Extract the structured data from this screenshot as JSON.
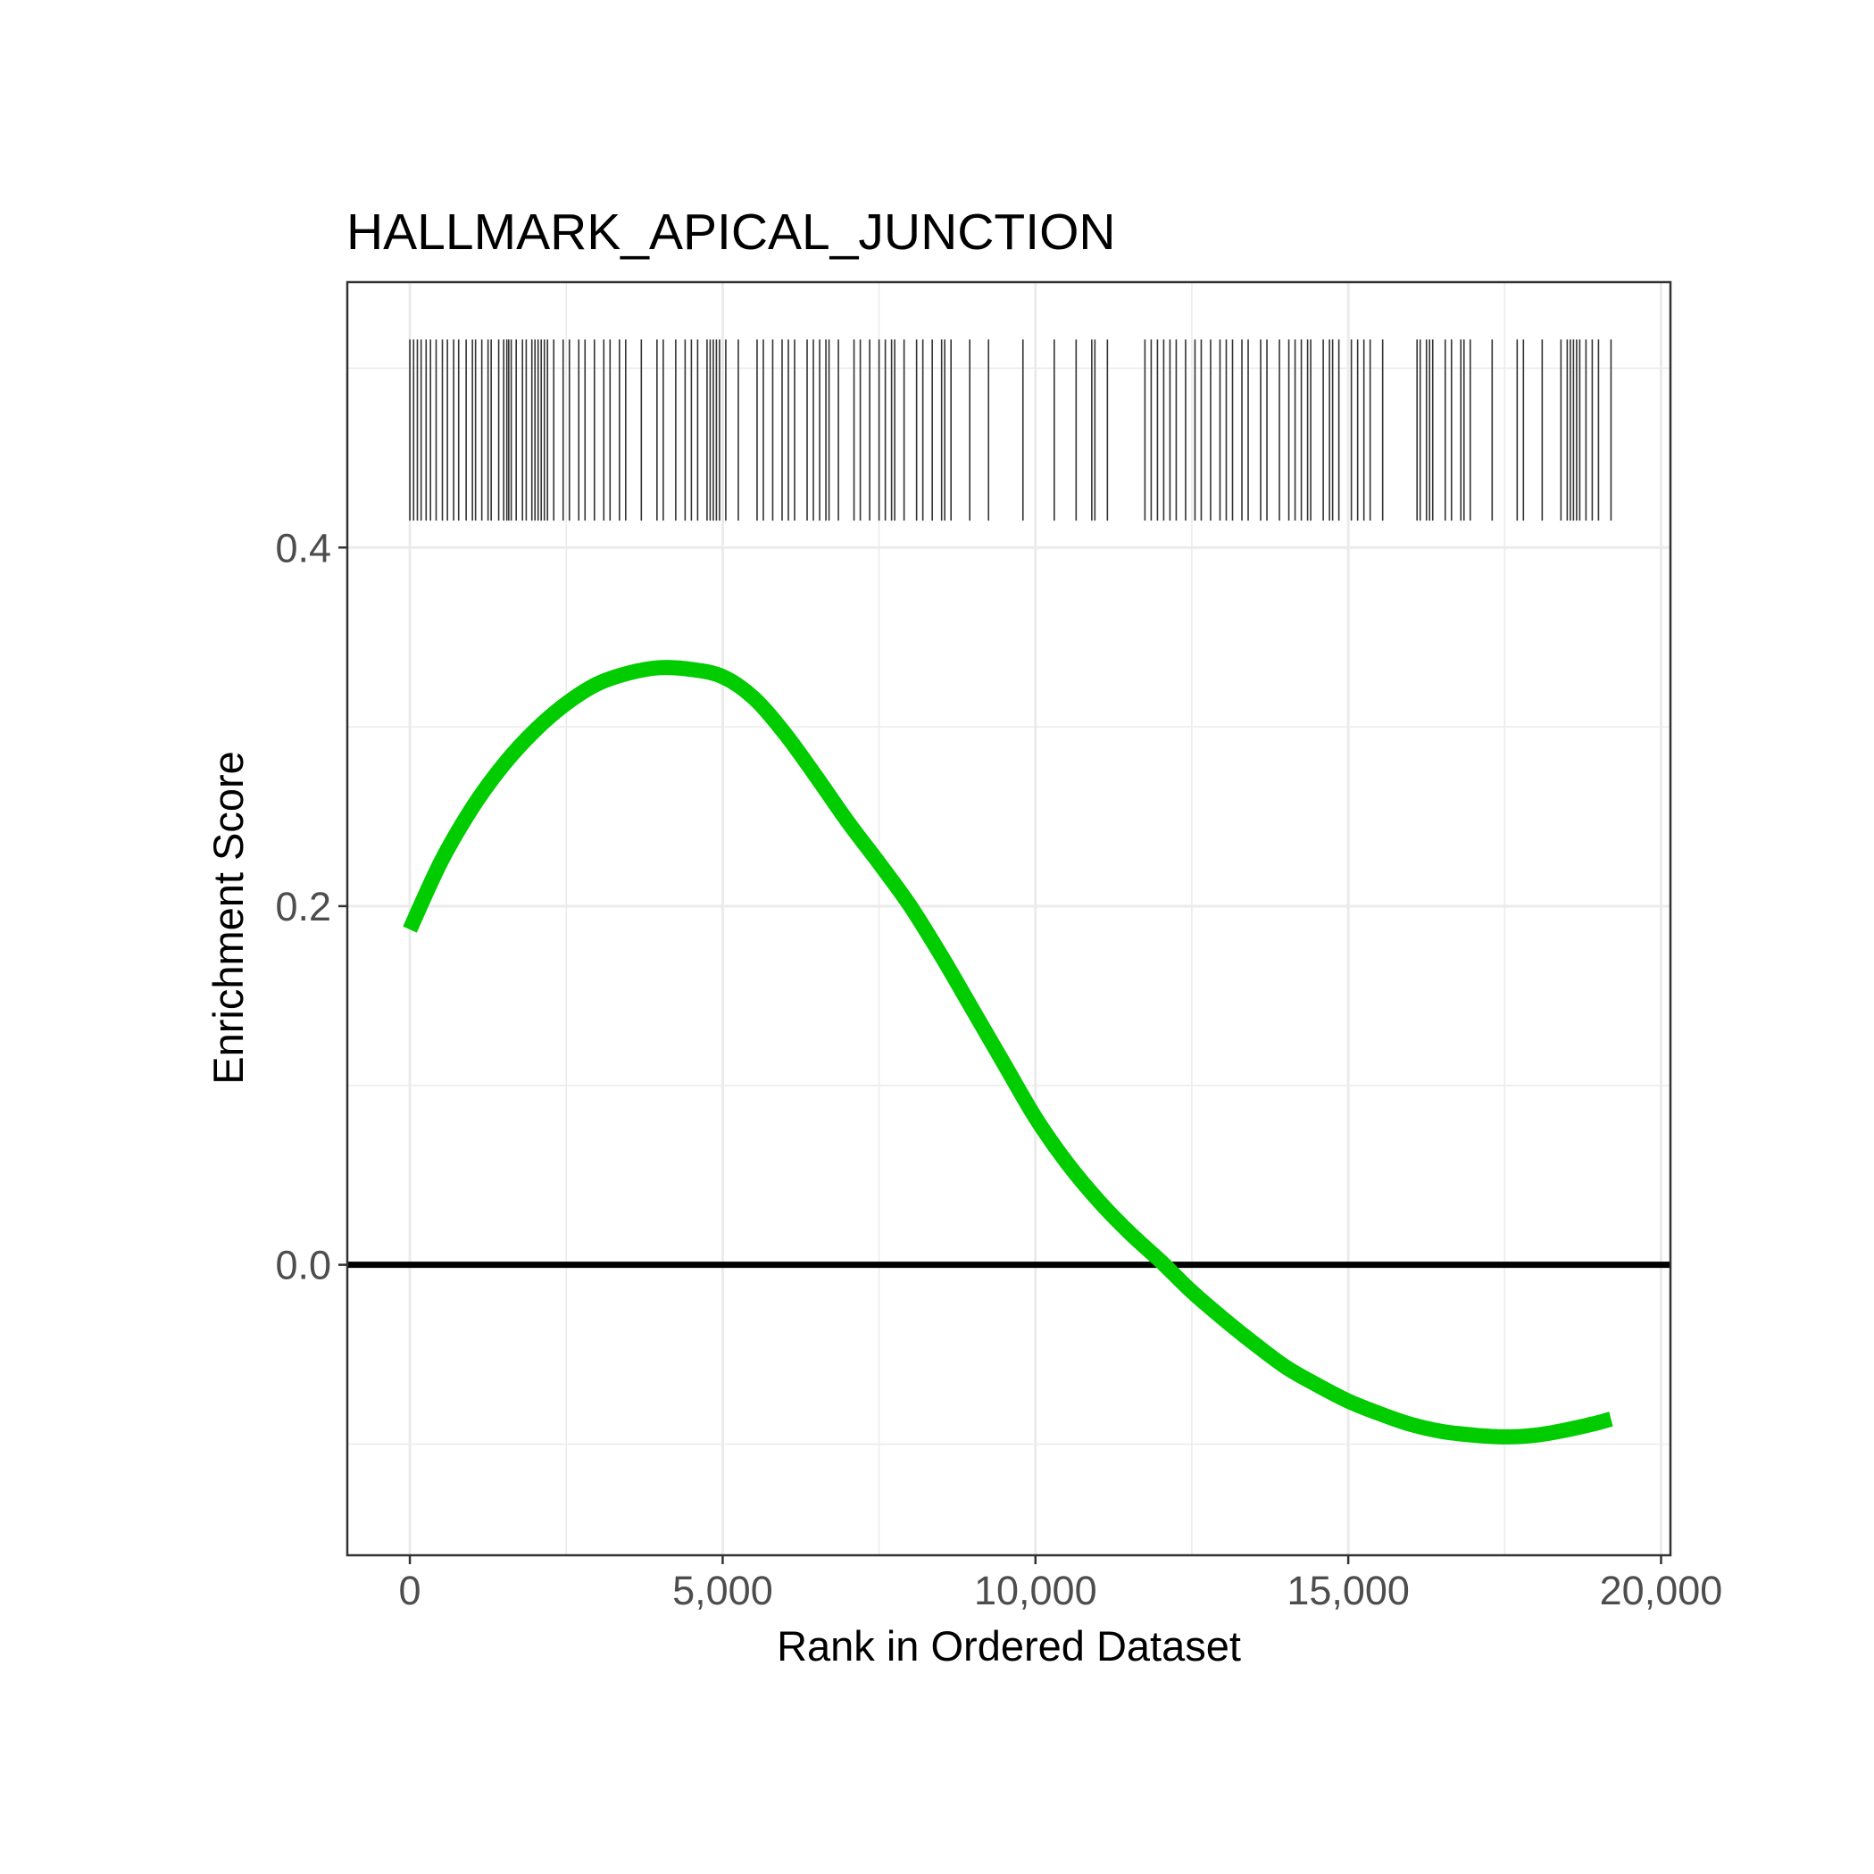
{
  "chart_data": {
    "type": "line",
    "title": "HALLMARK_APICAL_JUNCTION",
    "xlabel": "Rank in Ordered Dataset",
    "ylabel": "Enrichment Score",
    "xlim": [
      -1000,
      20150
    ],
    "ylim": [
      -0.162,
      0.548
    ],
    "x_ticks": [
      {
        "value": 0,
        "label": "0"
      },
      {
        "value": 5000,
        "label": "5,000"
      },
      {
        "value": 10000,
        "label": "10,000"
      },
      {
        "value": 15000,
        "label": "15,000"
      },
      {
        "value": 20000,
        "label": "20,000"
      }
    ],
    "x_minor": [
      2500,
      7500,
      12500,
      17500
    ],
    "y_ticks": [
      {
        "value": 0.0,
        "label": "0.0"
      },
      {
        "value": 0.2,
        "label": "0.2"
      },
      {
        "value": 0.4,
        "label": "0.4"
      }
    ],
    "y_minor": [
      -0.1,
      0.1,
      0.3,
      0.5
    ],
    "grid": true,
    "baseline": 0,
    "line_color": "#00cc00",
    "series": [
      {
        "x": [
          0,
          500,
          1000,
          1500,
          2000,
          2500,
          3000,
          3500,
          4000,
          4500,
          5000,
          5500,
          6000,
          6500,
          7000,
          7500,
          8000,
          8500,
          9000,
          9500,
          10000,
          10500,
          11000,
          11500,
          12000,
          12500,
          13000,
          13500,
          14000,
          14500,
          15000,
          15500,
          16000,
          16500,
          17000,
          17500,
          18000,
          18500,
          19000,
          19200
        ],
        "y": [
          0.187,
          0.225,
          0.255,
          0.279,
          0.298,
          0.313,
          0.324,
          0.33,
          0.333,
          0.332,
          0.328,
          0.316,
          0.296,
          0.272,
          0.247,
          0.224,
          0.2,
          0.172,
          0.142,
          0.112,
          0.082,
          0.057,
          0.036,
          0.018,
          0.002,
          -0.015,
          -0.03,
          -0.044,
          -0.057,
          -0.067,
          -0.076,
          -0.083,
          -0.089,
          -0.093,
          -0.095,
          -0.096,
          -0.095,
          -0.092,
          -0.088,
          -0.086
        ]
      }
    ],
    "hit_ranks": [
      0,
      60,
      120,
      180,
      260,
      330,
      420,
      520,
      600,
      700,
      780,
      900,
      1000,
      1050,
      1150,
      1250,
      1300,
      1420,
      1500,
      1550,
      1580,
      1620,
      1700,
      1800,
      1860,
      1950,
      2000,
      2050,
      2100,
      2150,
      2200,
      2300,
      2450,
      2550,
      2700,
      2800,
      2950,
      3100,
      3200,
      3350,
      3450,
      3700,
      3950,
      4050,
      4250,
      4400,
      4500,
      4600,
      4750,
      4800,
      4850,
      4900,
      4950,
      5050,
      5250,
      5550,
      5650,
      5800,
      5950,
      6050,
      6150,
      6350,
      6450,
      6550,
      6650,
      6700,
      6850,
      7100,
      7200,
      7350,
      7500,
      7600,
      7700,
      7750,
      7900,
      8100,
      8200,
      8350,
      8500,
      8550,
      8650,
      8950,
      9250,
      9800,
      10300,
      10650,
      10900,
      10950,
      11150,
      11750,
      11850,
      11950,
      12050,
      12150,
      12250,
      12400,
      12550,
      12650,
      12800,
      12950,
      13050,
      13150,
      13300,
      13400,
      13600,
      13700,
      13900,
      14050,
      14150,
      14250,
      14350,
      14400,
      14600,
      14700,
      14750,
      14850,
      15050,
      15150,
      15250,
      15350,
      15550,
      16100,
      16150,
      16250,
      16300,
      16350,
      16550,
      16650,
      16800,
      16850,
      16950,
      17300,
      17700,
      17800,
      18100,
      18400,
      18500,
      18550,
      18600,
      18650,
      18700,
      18800,
      18900,
      19000,
      19200
    ]
  }
}
